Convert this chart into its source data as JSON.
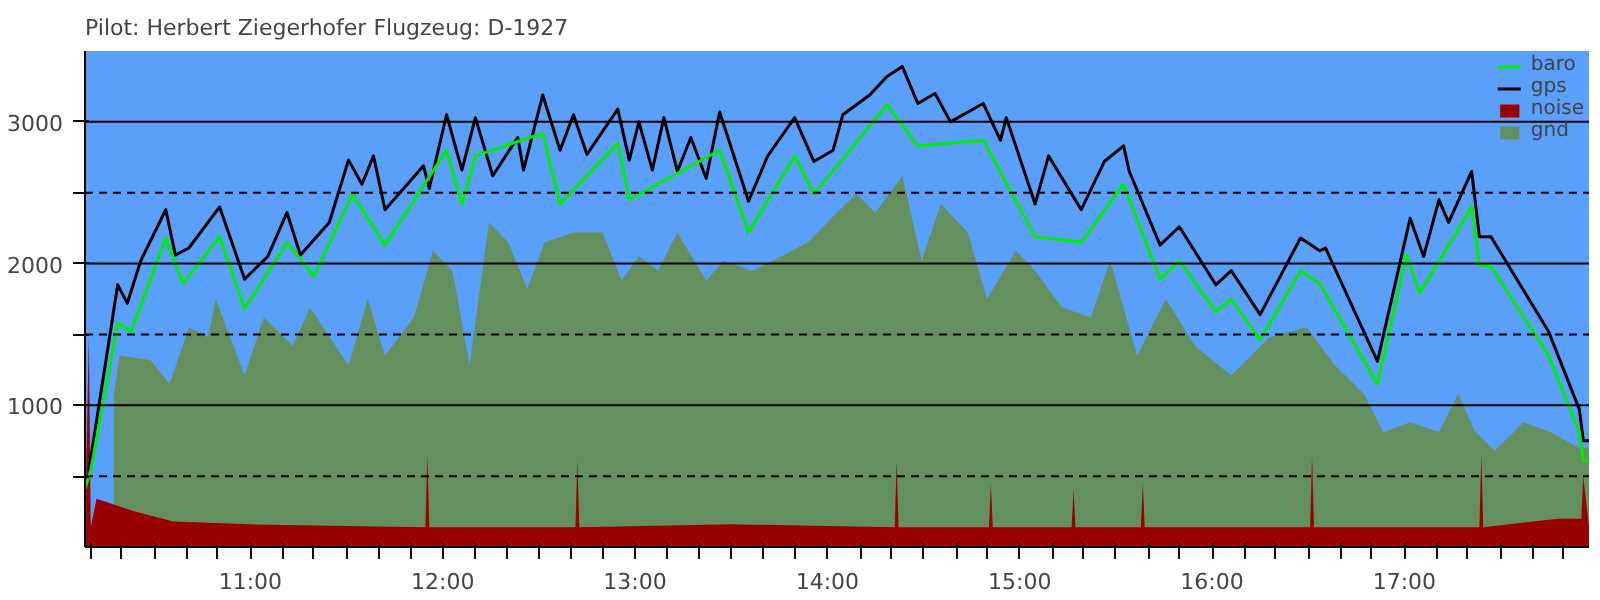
{
  "chart_data": {
    "type": "line",
    "title": "Pilot: Herbert Ziegerhofer Flugzeug: D-1927",
    "xlim": [
      10.14,
      17.96
    ],
    "ylim": [
      0,
      3500
    ],
    "xticks": [
      {
        "value": 10.17,
        "label": null
      },
      {
        "value": 10.33,
        "label": null
      },
      {
        "value": 10.5,
        "label": null
      },
      {
        "value": 10.67,
        "label": null
      },
      {
        "value": 10.83,
        "label": null
      },
      {
        "value": 11,
        "label": "11:00"
      },
      {
        "value": 11.17,
        "label": null
      },
      {
        "value": 11.33,
        "label": null
      },
      {
        "value": 11.5,
        "label": null
      },
      {
        "value": 11.67,
        "label": null
      },
      {
        "value": 11.83,
        "label": null
      },
      {
        "value": 12,
        "label": "12:00"
      },
      {
        "value": 12.17,
        "label": null
      },
      {
        "value": 12.33,
        "label": null
      },
      {
        "value": 12.5,
        "label": null
      },
      {
        "value": 12.67,
        "label": null
      },
      {
        "value": 12.83,
        "label": null
      },
      {
        "value": 13,
        "label": "13:00"
      },
      {
        "value": 13.17,
        "label": null
      },
      {
        "value": 13.33,
        "label": null
      },
      {
        "value": 13.5,
        "label": null
      },
      {
        "value": 13.67,
        "label": null
      },
      {
        "value": 13.83,
        "label": null
      },
      {
        "value": 14,
        "label": "14:00"
      },
      {
        "value": 14.17,
        "label": null
      },
      {
        "value": 14.33,
        "label": null
      },
      {
        "value": 14.5,
        "label": null
      },
      {
        "value": 14.67,
        "label": null
      },
      {
        "value": 14.83,
        "label": null
      },
      {
        "value": 15,
        "label": "15:00"
      },
      {
        "value": 15.17,
        "label": null
      },
      {
        "value": 15.33,
        "label": null
      },
      {
        "value": 15.5,
        "label": null
      },
      {
        "value": 15.67,
        "label": null
      },
      {
        "value": 15.83,
        "label": null
      },
      {
        "value": 16,
        "label": "16:00"
      },
      {
        "value": 16.17,
        "label": null
      },
      {
        "value": 16.33,
        "label": null
      },
      {
        "value": 16.5,
        "label": null
      },
      {
        "value": 16.67,
        "label": null
      },
      {
        "value": 16.83,
        "label": null
      },
      {
        "value": 17,
        "label": "17:00"
      },
      {
        "value": 17.17,
        "label": null
      },
      {
        "value": 17.33,
        "label": null
      },
      {
        "value": 17.5,
        "label": null
      },
      {
        "value": 17.67,
        "label": null
      },
      {
        "value": 17.83,
        "label": null
      }
    ],
    "yticks": [
      {
        "value": 500,
        "label": null
      },
      1000,
      {
        "value": 1500,
        "label": null
      },
      2000,
      {
        "value": 2500,
        "label": null
      },
      3000
    ],
    "grid": "y",
    "legend": "top right",
    "series": [
      {
        "name": "baro",
        "type": "line",
        "color": "#00ee00",
        "x": [
          10.14,
          10.17,
          10.31,
          10.38,
          10.56,
          10.65,
          10.84,
          10.97,
          11.19,
          11.33,
          11.53,
          11.7,
          12.02,
          12.1,
          12.17,
          12.52,
          12.61,
          12.91,
          12.97,
          13.44,
          13.59,
          13.83,
          13.93,
          14.31,
          14.47,
          14.81,
          15.08,
          15.32,
          15.54,
          15.73,
          15.83,
          16.02,
          16.1,
          16.25,
          16.46,
          16.56,
          16.86,
          17.01,
          17.08,
          17.35,
          17.39,
          17.45,
          17.75,
          17.91,
          17.93,
          17.96
        ],
        "values": [
          410,
          540,
          1580,
          1520,
          2180,
          1860,
          2190,
          1680,
          2150,
          1910,
          2490,
          2130,
          2800,
          2420,
          2760,
          2920,
          2420,
          2850,
          2450,
          2800,
          2220,
          2760,
          2490,
          3120,
          2830,
          2870,
          2190,
          2150,
          2560,
          1890,
          2020,
          1660,
          1750,
          1460,
          1950,
          1860,
          1150,
          2060,
          1790,
          2400,
          1990,
          1980,
          1350,
          810,
          610,
          610
        ]
      },
      {
        "name": "gps",
        "type": "line",
        "color": "#000000",
        "x": [
          10.16,
          10.31,
          10.36,
          10.43,
          10.56,
          10.61,
          10.68,
          10.84,
          10.97,
          11.09,
          11.19,
          11.26,
          11.41,
          11.51,
          11.58,
          11.64,
          11.7,
          11.9,
          11.93,
          12.02,
          12.1,
          12.17,
          12.26,
          12.39,
          12.42,
          12.52,
          12.61,
          12.68,
          12.75,
          12.91,
          12.97,
          13.02,
          13.09,
          13.15,
          13.22,
          13.29,
          13.37,
          13.44,
          13.59,
          13.69,
          13.83,
          13.93,
          14.03,
          14.08,
          14.22,
          14.31,
          14.39,
          14.47,
          14.56,
          14.64,
          14.81,
          14.9,
          14.93,
          15.08,
          15.15,
          15.32,
          15.44,
          15.54,
          15.57,
          15.73,
          15.83,
          16.02,
          16.1,
          16.25,
          16.46,
          16.56,
          16.59,
          16.86,
          17.03,
          17.1,
          17.18,
          17.23,
          17.35,
          17.39,
          17.45,
          17.75,
          17.91,
          17.93,
          17.96
        ],
        "values": [
          540,
          1850,
          1720,
          2020,
          2380,
          2060,
          2110,
          2400,
          1890,
          2050,
          2360,
          2060,
          2290,
          2730,
          2560,
          2760,
          2380,
          2690,
          2530,
          3050,
          2660,
          3030,
          2620,
          2890,
          2660,
          3190,
          2800,
          3050,
          2770,
          3090,
          2730,
          3000,
          2660,
          3030,
          2650,
          2890,
          2600,
          3070,
          2440,
          2760,
          3030,
          2720,
          2800,
          3050,
          3190,
          3320,
          3390,
          3130,
          3200,
          3000,
          3130,
          2870,
          3030,
          2420,
          2760,
          2380,
          2720,
          2830,
          2650,
          2130,
          2260,
          1850,
          1950,
          1640,
          2180,
          2090,
          2110,
          1310,
          2320,
          2050,
          2450,
          2290,
          2650,
          2190,
          2190,
          1520,
          970,
          750,
          750
        ]
      },
      {
        "name": "noise",
        "type": "area",
        "color": "#990000",
        "x": [
          10.14,
          10.16,
          10.17,
          10.2,
          10.4,
          10.6,
          11.0,
          11.91,
          11.92,
          11.93,
          12.69,
          12.7,
          12.71,
          13.5,
          14.35,
          14.36,
          14.37,
          14.84,
          14.85,
          14.86,
          15.27,
          15.28,
          15.29,
          15.63,
          15.64,
          15.65,
          16.51,
          16.52,
          16.53,
          17.39,
          17.4,
          17.41,
          17.8,
          17.92,
          17.93,
          17.96
        ],
        "values": [
          140,
          1480,
          140,
          340,
          250,
          180,
          160,
          140,
          650,
          140,
          140,
          610,
          140,
          160,
          140,
          600,
          140,
          140,
          440,
          140,
          140,
          410,
          140,
          140,
          450,
          140,
          140,
          640,
          140,
          140,
          650,
          140,
          200,
          200,
          500,
          140
        ]
      },
      {
        "name": "gnd",
        "type": "area",
        "color": "#64905f",
        "x": [
          10.29,
          10.32,
          10.48,
          10.58,
          10.68,
          10.78,
          10.82,
          10.97,
          11.07,
          11.22,
          11.31,
          11.51,
          11.61,
          11.7,
          11.85,
          11.95,
          12.05,
          12.14,
          12.24,
          12.34,
          12.44,
          12.53,
          12.68,
          12.83,
          12.93,
          13.02,
          13.12,
          13.22,
          13.37,
          13.46,
          13.61,
          13.76,
          13.9,
          14.05,
          14.15,
          14.25,
          14.39,
          14.49,
          14.59,
          14.73,
          14.83,
          14.98,
          15.08,
          15.22,
          15.37,
          15.47,
          15.61,
          15.76,
          15.91,
          16.1,
          16.3,
          16.49,
          16.64,
          16.79,
          16.89,
          17.03,
          17.18,
          17.28,
          17.37,
          17.47,
          17.62,
          17.76,
          17.91,
          17.96
        ],
        "values": [
          1080,
          1350,
          1320,
          1150,
          1550,
          1480,
          1750,
          1210,
          1620,
          1420,
          1690,
          1280,
          1750,
          1350,
          1620,
          2090,
          1950,
          1280,
          2290,
          2150,
          1820,
          2150,
          2220,
          2220,
          1880,
          2050,
          1950,
          2220,
          1880,
          2020,
          1950,
          2050,
          2150,
          2360,
          2490,
          2360,
          2620,
          2020,
          2420,
          2220,
          1750,
          2090,
          1950,
          1690,
          1620,
          2020,
          1350,
          1750,
          1420,
          1210,
          1480,
          1550,
          1280,
          1080,
          810,
          880,
          810,
          1080,
          810,
          680,
          880,
          810,
          700,
          700
        ]
      }
    ]
  }
}
